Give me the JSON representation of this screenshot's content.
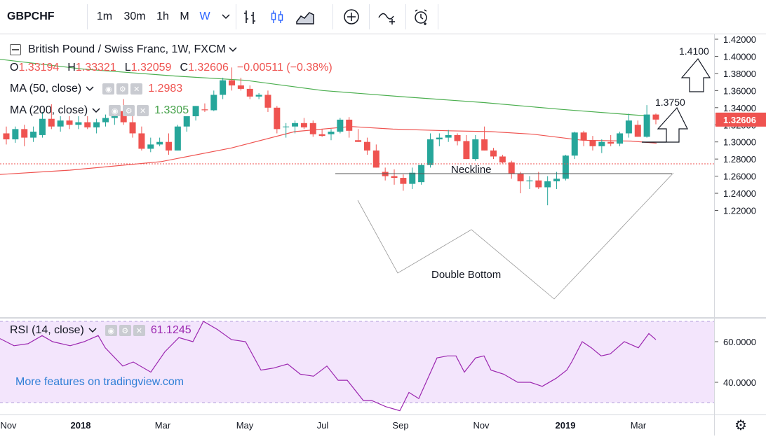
{
  "toolbar": {
    "symbol": "GBPCHF",
    "intervals": [
      "1m",
      "30m",
      "1h",
      "M",
      "W"
    ],
    "active_interval": "W",
    "chevron": "chevron-down-icon",
    "icons": [
      "bar-style-icon",
      "candle-style-icon",
      "area-style-icon",
      "compare-add-icon",
      "indicators-icon",
      "alert-icon"
    ]
  },
  "legend": {
    "title": "British Pound / Swiss Franc, 1W, FXCM",
    "o_label": "O",
    "o": "1.33194",
    "h_label": "H",
    "h": "1.33321",
    "l_label": "L",
    "l": "1.32059",
    "c_label": "C",
    "c": "1.32606",
    "change": "−0.00511 (−0.38%)",
    "ma50_label": "MA (50, close)",
    "ma50_value": "1.2983",
    "ma200_label": "MA (200, close)",
    "ma200_value": "1.3305",
    "rsi_label": "RSI (14, close)",
    "rsi_value": "61.1245"
  },
  "annotations": {
    "neckline": "Neckline",
    "double_bottom": "Double Bottom",
    "target1": "1.3750",
    "target2": "1.4100"
  },
  "promo": "More features on tradingview.com",
  "price_axis": [
    "1.42000",
    "1.40000",
    "1.38000",
    "1.36000",
    "1.34000",
    "1.32000",
    "1.30000",
    "1.28000",
    "1.26000",
    "1.24000",
    "1.22000"
  ],
  "last_price": "1.32606",
  "rsi_axis": [
    "60.0000",
    "40.0000"
  ],
  "time_axis": [
    "Nov",
    "2018",
    "Mar",
    "May",
    "Jul",
    "Sep",
    "Nov",
    "2019",
    "Mar"
  ],
  "colors": {
    "up": "#26a69a",
    "down": "#ef5350",
    "ma50": "#ef5350",
    "ma200": "#4caf50",
    "rsi": "#9c27b0",
    "rsi_bg": "#f3e5fc"
  },
  "chart_data": {
    "type": "candlestick",
    "y_range": [
      1.215,
      1.425
    ],
    "candles": [
      [
        1.31,
        1.318,
        1.297,
        1.303
      ],
      [
        1.303,
        1.318,
        1.299,
        1.315
      ],
      [
        1.315,
        1.32,
        1.295,
        1.305
      ],
      [
        1.305,
        1.318,
        1.3,
        1.312
      ],
      [
        1.308,
        1.335,
        1.305,
        1.327
      ],
      [
        1.327,
        1.344,
        1.315,
        1.318
      ],
      [
        1.318,
        1.33,
        1.312,
        1.325
      ],
      [
        1.325,
        1.33,
        1.315,
        1.32
      ],
      [
        1.32,
        1.33,
        1.315,
        1.323
      ],
      [
        1.323,
        1.33,
        1.315,
        1.317
      ],
      [
        1.317,
        1.327,
        1.31,
        1.323
      ],
      [
        1.323,
        1.332,
        1.318,
        1.328
      ],
      [
        1.328,
        1.338,
        1.32,
        1.336
      ],
      [
        1.336,
        1.35,
        1.32,
        1.323
      ],
      [
        1.323,
        1.332,
        1.305,
        1.31
      ],
      [
        1.31,
        1.318,
        1.29,
        1.292
      ],
      [
        1.292,
        1.305,
        1.288,
        1.297
      ],
      [
        1.297,
        1.305,
        1.295,
        1.3
      ],
      [
        1.3,
        1.31,
        1.285,
        1.29
      ],
      [
        1.29,
        1.32,
        1.29,
        1.318
      ],
      [
        1.318,
        1.33,
        1.312,
        1.33
      ],
      [
        1.33,
        1.342,
        1.325,
        1.342
      ],
      [
        1.338,
        1.345,
        1.335,
        1.337
      ],
      [
        1.337,
        1.36,
        1.336,
        1.355
      ],
      [
        1.355,
        1.375,
        1.35,
        1.372
      ],
      [
        1.372,
        1.387,
        1.36,
        1.366
      ],
      [
        1.366,
        1.375,
        1.36,
        1.362
      ],
      [
        1.362,
        1.366,
        1.35,
        1.353
      ],
      [
        1.353,
        1.357,
        1.35,
        1.355
      ],
      [
        1.355,
        1.36,
        1.335,
        1.34
      ],
      [
        1.34,
        1.342,
        1.31,
        1.315
      ],
      [
        1.318,
        1.322,
        1.305,
        1.318
      ],
      [
        1.318,
        1.325,
        1.31,
        1.322
      ],
      [
        1.322,
        1.328,
        1.315,
        1.317
      ],
      [
        1.322,
        1.325,
        1.306,
        1.309
      ],
      [
        1.309,
        1.315,
        1.306,
        1.307
      ],
      [
        1.309,
        1.315,
        1.302,
        1.312
      ],
      [
        1.312,
        1.328,
        1.31,
        1.326
      ],
      [
        1.326,
        1.329,
        1.305,
        1.313
      ],
      [
        1.302,
        1.315,
        1.3,
        1.3
      ],
      [
        1.3,
        1.305,
        1.285,
        1.29
      ],
      [
        1.29,
        1.297,
        1.27,
        1.27
      ],
      [
        1.265,
        1.27,
        1.255,
        1.26
      ],
      [
        1.26,
        1.268,
        1.25,
        1.258
      ],
      [
        1.258,
        1.262,
        1.243,
        1.251
      ],
      [
        1.251,
        1.27,
        1.245,
        1.264
      ],
      [
        1.253,
        1.275,
        1.25,
        1.273
      ],
      [
        1.273,
        1.31,
        1.27,
        1.303
      ],
      [
        1.303,
        1.31,
        1.295,
        1.305
      ],
      [
        1.305,
        1.314,
        1.3,
        1.308
      ],
      [
        1.308,
        1.31,
        1.296,
        1.301
      ],
      [
        1.301,
        1.308,
        1.28,
        1.28
      ],
      [
        1.28,
        1.308,
        1.278,
        1.303
      ],
      [
        1.303,
        1.318,
        1.29,
        1.29
      ],
      [
        1.29,
        1.293,
        1.28,
        1.283
      ],
      [
        1.283,
        1.285,
        1.275,
        1.276
      ],
      [
        1.276,
        1.278,
        1.257,
        1.263
      ],
      [
        1.263,
        1.265,
        1.24,
        1.254
      ],
      [
        1.254,
        1.26,
        1.245,
        1.255
      ],
      [
        1.255,
        1.265,
        1.245,
        1.247
      ],
      [
        1.247,
        1.26,
        1.226,
        1.254
      ],
      [
        1.254,
        1.265,
        1.245,
        1.257
      ],
      [
        1.257,
        1.285,
        1.255,
        1.284
      ],
      [
        1.284,
        1.312,
        1.28,
        1.311
      ],
      [
        1.311,
        1.313,
        1.295,
        1.302
      ],
      [
        1.302,
        1.307,
        1.29,
        1.295
      ],
      [
        1.295,
        1.303,
        1.287,
        1.3
      ],
      [
        1.3,
        1.308,
        1.295,
        1.298
      ],
      [
        1.298,
        1.312,
        1.295,
        1.31
      ],
      [
        1.31,
        1.333,
        1.305,
        1.325
      ],
      [
        1.32,
        1.325,
        1.306,
        1.306
      ],
      [
        1.306,
        1.343,
        1.305,
        1.332
      ],
      [
        1.332,
        1.3332,
        1.3206,
        1.3261
      ]
    ],
    "ma200": [
      [
        0,
        1.3965
      ],
      [
        120,
        1.385
      ],
      [
        250,
        1.377
      ],
      [
        350,
        1.372
      ],
      [
        460,
        1.36
      ],
      [
        570,
        1.353
      ],
      [
        690,
        1.346
      ],
      [
        800,
        1.338
      ],
      [
        920,
        1.3305
      ]
    ],
    "ma50": [
      [
        0,
        1.262
      ],
      [
        100,
        1.267
      ],
      [
        230,
        1.277
      ],
      [
        330,
        1.293
      ],
      [
        420,
        1.312
      ],
      [
        500,
        1.318
      ],
      [
        560,
        1.315
      ],
      [
        640,
        1.313
      ],
      [
        700,
        1.312
      ],
      [
        760,
        1.309
      ],
      [
        830,
        1.302
      ],
      [
        900,
        1.301
      ],
      [
        936,
        1.2985
      ]
    ],
    "rsi": [
      [
        0,
        61.5
      ],
      [
        20,
        58
      ],
      [
        40,
        59
      ],
      [
        60,
        63
      ],
      [
        75,
        60
      ],
      [
        100,
        58
      ],
      [
        120,
        60
      ],
      [
        140,
        63
      ],
      [
        150,
        57
      ],
      [
        175,
        48
      ],
      [
        190,
        50
      ],
      [
        215,
        45
      ],
      [
        235,
        55
      ],
      [
        255,
        62
      ],
      [
        275,
        60
      ],
      [
        290,
        70
      ],
      [
        310,
        66
      ],
      [
        330,
        61
      ],
      [
        350,
        60
      ],
      [
        372,
        46
      ],
      [
        390,
        47
      ],
      [
        410,
        49
      ],
      [
        428,
        44
      ],
      [
        447,
        43
      ],
      [
        466,
        48
      ],
      [
        482,
        41
      ],
      [
        495,
        41
      ],
      [
        518,
        31
      ],
      [
        530,
        31
      ],
      [
        550,
        28
      ],
      [
        570,
        26
      ],
      [
        583,
        35
      ],
      [
        597,
        32
      ],
      [
        610,
        42
      ],
      [
        623,
        52
      ],
      [
        638,
        53
      ],
      [
        650,
        53
      ],
      [
        662,
        45
      ],
      [
        678,
        52
      ],
      [
        690,
        53
      ],
      [
        700,
        46
      ],
      [
        718,
        44
      ],
      [
        738,
        40
      ],
      [
        756,
        40
      ],
      [
        773,
        38
      ],
      [
        793,
        42
      ],
      [
        808,
        46
      ],
      [
        815,
        50
      ],
      [
        830,
        60
      ],
      [
        843,
        57
      ],
      [
        857,
        53
      ],
      [
        870,
        54
      ],
      [
        890,
        60
      ],
      [
        910,
        57
      ],
      [
        925,
        64
      ],
      [
        935,
        61
      ]
    ]
  }
}
